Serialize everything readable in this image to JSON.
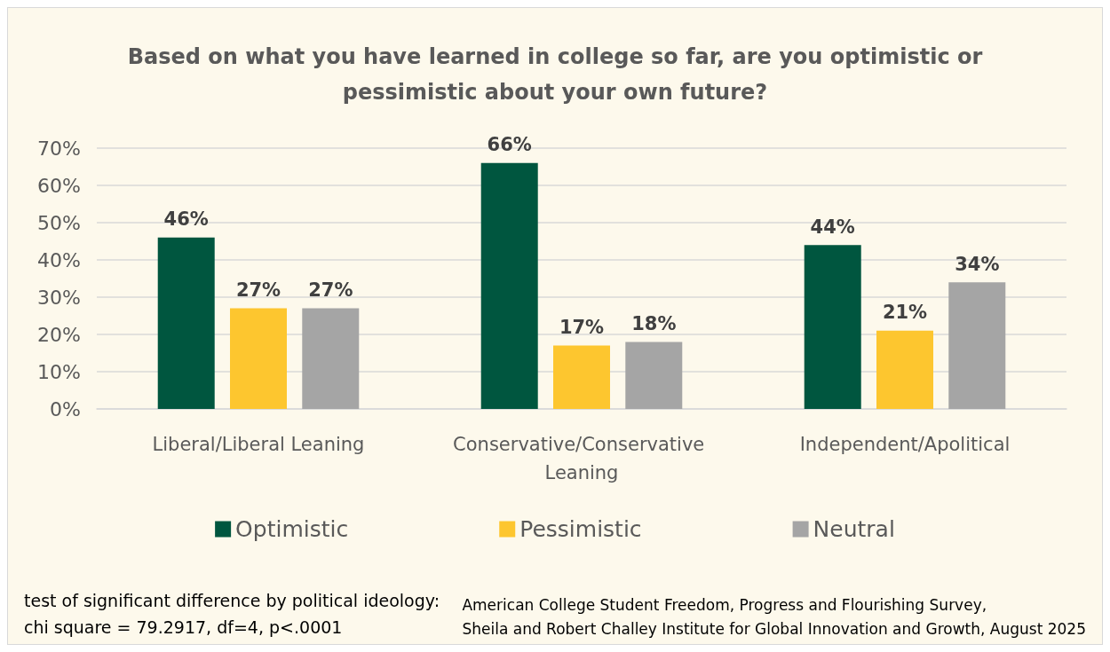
{
  "chart_data": {
    "type": "bar",
    "title": "Based on what you have learned in college so far, are you optimistic or\npessimistic about your own future?",
    "categories": [
      "Liberal/Liberal Leaning",
      "Conservative/Conservative Leaning",
      "Independent/Apolitical"
    ],
    "series": [
      {
        "name": "Optimistic",
        "color": "#00563f",
        "values": [
          46,
          66,
          44
        ],
        "value_labels": [
          "46%",
          "66%",
          "44%"
        ]
      },
      {
        "name": "Pessimistic",
        "color": "#fdc62f",
        "values": [
          27,
          17,
          21
        ],
        "value_labels": [
          "27%",
          "17%",
          "21%"
        ]
      },
      {
        "name": "Neutral",
        "color": "#a5a5a5",
        "values": [
          27,
          18,
          34
        ],
        "value_labels": [
          "27%",
          "18%",
          "34%"
        ]
      }
    ],
    "ylim": [
      0,
      70
    ],
    "yticks": [
      {
        "value": 0,
        "label": "0%"
      },
      {
        "value": 10,
        "label": "10%"
      },
      {
        "value": 20,
        "label": "20%"
      },
      {
        "value": 30,
        "label": "30%"
      },
      {
        "value": 40,
        "label": "40%"
      },
      {
        "value": 50,
        "label": "50%"
      },
      {
        "value": 60,
        "label": "60%"
      },
      {
        "value": 70,
        "label": "70%"
      }
    ],
    "grid": "y",
    "legend": "bottom",
    "annotations": [
      "test of significant difference by political ideology:\nchi square = 79.2917, df=4, p<.0001",
      "American College Student Freedom, Progress and Flourishing Survey,\nSheila and Robert Challey Institute for Global Innovation and Growth, August 2025"
    ]
  }
}
